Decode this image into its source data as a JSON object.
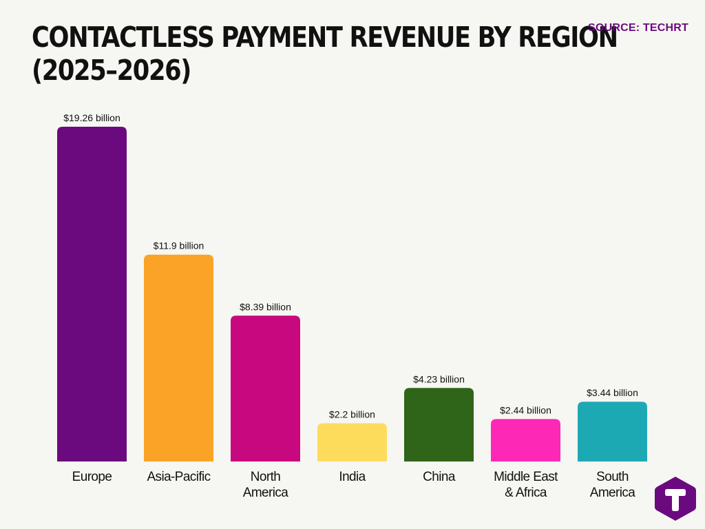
{
  "title_line1": "CONTACTLESS PAYMENT REVENUE BY REGION",
  "title_line2": "(2025–2026)",
  "source": "SOURCE: TECHRT",
  "logo_icon": "techrt-t-logo-icon",
  "chart_data": {
    "type": "bar",
    "title": "CONTACTLESS PAYMENT REVENUE BY REGION (2025–2026)",
    "unit": "billion USD",
    "categories": [
      [
        "Europe"
      ],
      [
        "Asia-Pacific"
      ],
      [
        "North",
        "America"
      ],
      [
        "India"
      ],
      [
        "China"
      ],
      [
        "Middle East",
        "& Africa"
      ],
      [
        "South",
        "America"
      ]
    ],
    "values": [
      19.26,
      11.9,
      8.39,
      2.2,
      4.23,
      2.44,
      3.44
    ],
    "data_labels": [
      "$19.26 billion",
      "$11.9 billion",
      "$8.39 billion",
      "$2.2 billion",
      "$4.23 billion",
      "$2.44 billion",
      "$3.44 billion"
    ],
    "colors": [
      "#6b0a7e",
      "#fba326",
      "#c8087e",
      "#fddc5c",
      "#2f6519",
      "#fd28b6",
      "#1ca9b4"
    ],
    "ylim": [
      0,
      19.26
    ],
    "grid": false,
    "legend": "none",
    "xlabel": "",
    "ylabel": ""
  }
}
